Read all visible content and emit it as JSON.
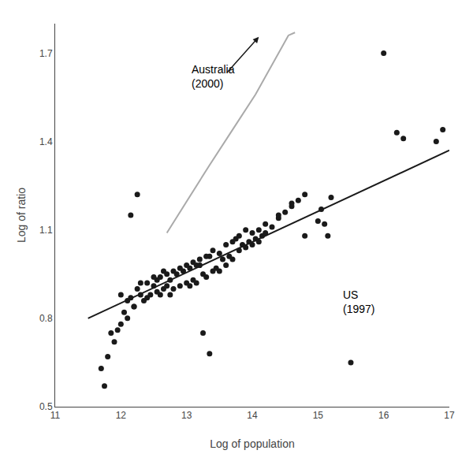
{
  "chart_data": {
    "type": "scatter",
    "xlabel": "Log of population",
    "ylabel": "Log of ratio",
    "xlim": [
      11,
      17
    ],
    "ylim": [
      0.5,
      1.8
    ],
    "xticks": [
      11,
      12,
      13,
      14,
      15,
      16,
      17
    ],
    "yticks": [
      0.5,
      0.8,
      1.1,
      1.4,
      1.7
    ],
    "grid": false,
    "series": [
      {
        "type": "scatter",
        "marker": "circle",
        "color": "#1a1a1a",
        "x": [
          11.7,
          11.8,
          11.85,
          11.9,
          11.95,
          12.0,
          12.05,
          12.1,
          12.15,
          12.2,
          12.25,
          12.3,
          12.35,
          12.4,
          12.45,
          12.5,
          12.55,
          12.6,
          12.65,
          12.7,
          12.75,
          12.8,
          12.85,
          12.9,
          12.95,
          13.0,
          13.05,
          13.1,
          13.15,
          13.2,
          13.25,
          13.3,
          13.35,
          13.4,
          13.45,
          13.5,
          13.55,
          13.6,
          13.65,
          13.7,
          13.75,
          13.8,
          13.85,
          13.9,
          13.95,
          14.0,
          14.05,
          14.1,
          14.15,
          14.2,
          14.3,
          14.4,
          14.5,
          14.6,
          14.7,
          14.8,
          15.0,
          15.1,
          15.2,
          15.5,
          16.0,
          16.2,
          16.3,
          16.8,
          16.9,
          11.75,
          12.0,
          12.1,
          12.2,
          12.3,
          12.4,
          12.5,
          12.6,
          12.7,
          12.8,
          12.9,
          13.0,
          13.1,
          13.2,
          13.3,
          13.4,
          13.5,
          13.6,
          13.7,
          13.8,
          13.9,
          14.0,
          14.1,
          14.2,
          14.4,
          14.6,
          14.8,
          15.05,
          15.15,
          13.25,
          13.35,
          12.15,
          12.25,
          12.55,
          12.65,
          12.75,
          13.05,
          13.15
        ],
        "values": [
          0.63,
          0.67,
          0.75,
          0.72,
          0.76,
          0.88,
          0.82,
          0.8,
          0.87,
          0.84,
          0.9,
          0.88,
          0.86,
          0.92,
          0.88,
          0.91,
          0.93,
          0.94,
          0.9,
          0.91,
          0.93,
          0.9,
          0.95,
          0.91,
          0.96,
          0.92,
          0.97,
          0.93,
          0.92,
          0.98,
          0.95,
          0.94,
          1.01,
          0.96,
          0.97,
          0.96,
          1.0,
          0.98,
          1.01,
          1.0,
          1.07,
          1.03,
          1.05,
          1.04,
          1.06,
          1.05,
          1.07,
          1.06,
          1.08,
          1.09,
          1.11,
          1.14,
          1.16,
          1.18,
          1.2,
          1.22,
          1.13,
          1.12,
          1.21,
          0.65,
          1.7,
          1.43,
          1.41,
          1.4,
          1.44,
          0.57,
          0.78,
          0.86,
          0.84,
          0.92,
          0.87,
          0.94,
          0.88,
          0.95,
          0.96,
          0.97,
          0.98,
          0.99,
          1.0,
          1.01,
          1.03,
          1.02,
          1.05,
          1.06,
          1.08,
          1.1,
          1.09,
          1.1,
          1.12,
          1.15,
          1.19,
          1.08,
          1.17,
          1.08,
          0.75,
          0.68,
          1.15,
          1.22,
          0.89,
          0.96,
          0.88,
          0.91,
          0.98
        ]
      },
      {
        "type": "line",
        "line_style": "solid",
        "color": "#1a1a1a",
        "x": [
          11.5,
          17.0
        ],
        "values": [
          0.8,
          1.37
        ]
      },
      {
        "type": "line",
        "line_style": "solid",
        "color": "#aaaaaa",
        "x": [
          12.7,
          13.35,
          13.35,
          13.7,
          13.7,
          14.05,
          14.05,
          14.55,
          14.55,
          14.65
        ],
        "values": [
          1.09,
          1.32,
          1.32,
          1.44,
          1.44,
          1.56,
          1.56,
          1.76,
          1.76,
          1.77
        ]
      }
    ],
    "annotations": [
      {
        "text": "Australia\n(2000)",
        "x": 13.05,
        "y": 1.62
      },
      {
        "text": "US\n(1997)",
        "x": 15.35,
        "y": 0.855
      },
      {
        "x": 14.1,
        "y": 1.755,
        "arrow_from": [
          13.6,
          1.63
        ],
        "color": "#1a1a1a"
      }
    ]
  }
}
